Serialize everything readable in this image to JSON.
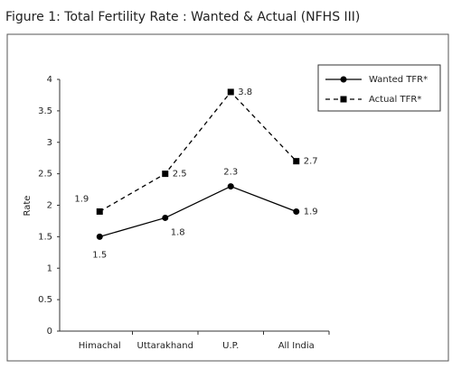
{
  "chart_data": {
    "type": "line",
    "title": "Figure 1: Total Fertility Rate : Wanted & Actual (NFHS III)",
    "y_label": "Rate",
    "categories": [
      "Himachal",
      "Uttarakhand",
      "U.P.",
      "All India"
    ],
    "series": [
      {
        "name": "Wanted TFR*",
        "color": "#000000",
        "marker": "circle",
        "dashed": false,
        "values": [
          1.5,
          1.8,
          2.3,
          1.9
        ]
      },
      {
        "name": "Actual TFR*",
        "color": "#000000",
        "marker": "square",
        "dashed": true,
        "values": [
          1.9,
          2.5,
          3.8,
          2.7
        ]
      }
    ],
    "ylim": [
      0,
      4
    ],
    "yticks": [
      0,
      0.5,
      1,
      1.5,
      2,
      2.5,
      3,
      3.5,
      4
    ],
    "grid": false,
    "legend": "upper right"
  }
}
